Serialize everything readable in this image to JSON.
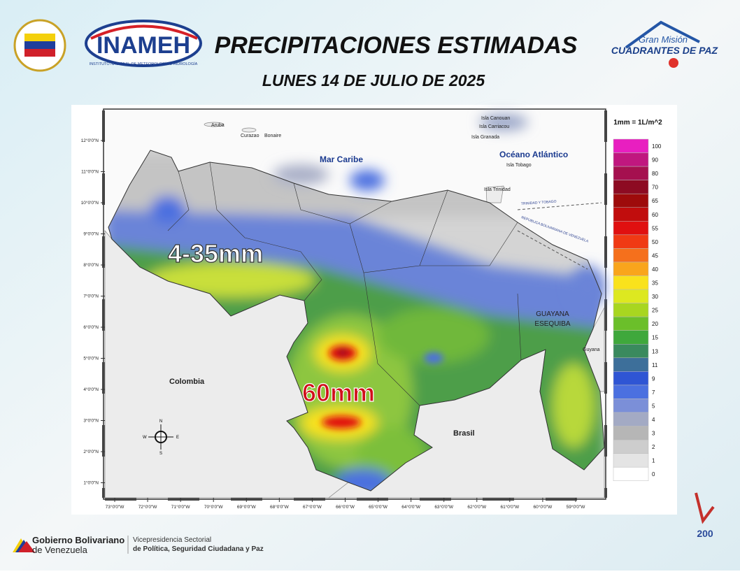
{
  "header": {
    "title": "PRECIPITACIONES ESTIMADAS",
    "date": "LUNES 14 DE JULIO DE 2025",
    "logo_left": "INAMEH",
    "logo_left_sub": "INSTITUTO NACIONAL DE METEOROLOGÍA E HIDROLOGÍA",
    "logo_right_top": "Gran Misión",
    "logo_right": "CUADRANTES DE PAZ"
  },
  "legend": {
    "title": "1mm = 1L/m^2",
    "items": [
      {
        "value": 100,
        "color": "#e81fc0"
      },
      {
        "value": 90,
        "color": "#c0177f"
      },
      {
        "value": 80,
        "color": "#a5104f"
      },
      {
        "value": 70,
        "color": "#8d0b22"
      },
      {
        "value": 65,
        "color": "#9e0b0b"
      },
      {
        "value": 60,
        "color": "#c10d0d"
      },
      {
        "value": 55,
        "color": "#e01010"
      },
      {
        "value": 50,
        "color": "#f03a14"
      },
      {
        "value": 45,
        "color": "#f5701c"
      },
      {
        "value": 40,
        "color": "#f9a51c"
      },
      {
        "value": 35,
        "color": "#f9e21c"
      },
      {
        "value": 30,
        "color": "#dde820"
      },
      {
        "value": 25,
        "color": "#a8d620"
      },
      {
        "value": 20,
        "color": "#6bbf2a"
      },
      {
        "value": 15,
        "color": "#3fa83c"
      },
      {
        "value": 13,
        "color": "#3a8a5e"
      },
      {
        "value": 11,
        "color": "#3d6f9a"
      },
      {
        "value": 9,
        "color": "#2f55d4"
      },
      {
        "value": 7,
        "color": "#4b70e0"
      },
      {
        "value": 5,
        "color": "#7b8fd8"
      },
      {
        "value": 4,
        "color": "#a3aac4"
      },
      {
        "value": 3,
        "color": "#b6b6b6"
      },
      {
        "value": 2,
        "color": "#cdcdcd"
      },
      {
        "value": 1,
        "color": "#e4e4e4"
      },
      {
        "value": 0,
        "color": "#ffffff"
      }
    ]
  },
  "map": {
    "lat_ticks": [
      "12°0'0\"N",
      "11°0'0\"N",
      "10°0'0\"N",
      "9°0'0\"N",
      "8°0'0\"N",
      "7°0'0\"N",
      "6°0'0\"N",
      "5°0'0\"N",
      "4°0'0\"N",
      "3°0'0\"N",
      "2°0'0\"N",
      "1°0'0\"N"
    ],
    "lon_ticks": [
      "73°0'0\"W",
      "72°0'0\"W",
      "71°0'0\"W",
      "70°0'0\"W",
      "69°0'0\"W",
      "68°0'0\"W",
      "67°0'0\"W",
      "66°0'0\"W",
      "65°0'0\"W",
      "64°0'0\"W",
      "63°0'0\"W",
      "62°0'0\"W",
      "61°0'0\"W",
      "60°0'0\"W",
      "59°0'0\"W"
    ],
    "labels": {
      "aruba": "Aruba",
      "curazao": "Curazao",
      "bonaire": "Bonaire",
      "mar_caribe": "Mar Caribe",
      "oceano": "Océano Atlántico",
      "canouan": "Isla Canouan",
      "carriacou": "Isla Carriacou",
      "granada": "Isla Granada",
      "tobago": "Isla Tobago",
      "trinidad": "Isla Trinidad",
      "tt": "TRINIDAD Y TOBAGO",
      "rbv": "REPUBLICA BOLIVARIANA DE VENEZUELA",
      "guayana1": "GUAYANA",
      "guayana2": "ESEQUIBA",
      "guyana": "Guyana",
      "colombia": "Colombia",
      "brasil": "Brasil"
    },
    "annotations": [
      "4-35mm",
      "60mm"
    ],
    "compass": {
      "n": "N",
      "s": "S",
      "e": "E",
      "w": "W"
    }
  },
  "footer": {
    "gov1": "Gobierno Bolivariano",
    "gov2": "de Venezuela",
    "vice1": "Vicepresidencia Sectorial",
    "vice2": "de Política, Seguridad Ciudadana y Paz",
    "badge": "200"
  }
}
